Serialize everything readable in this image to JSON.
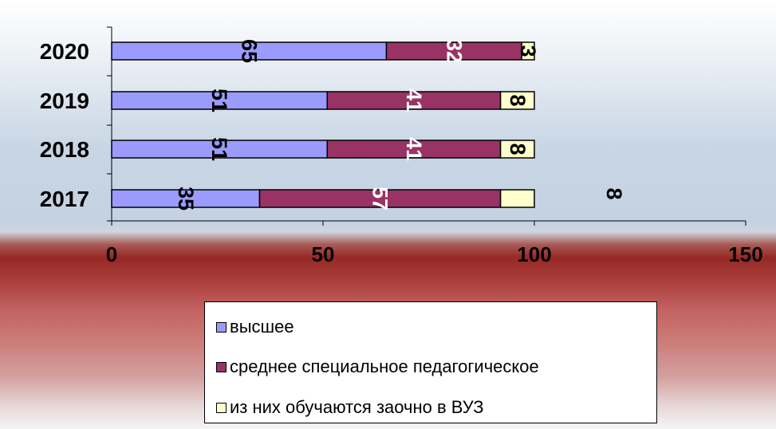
{
  "colors": {
    "higher": "#9b9bfd",
    "secondary": "#993366",
    "correspondence": "#ffffcc"
  },
  "chart_data": {
    "type": "bar",
    "orientation": "horizontal",
    "stacked": true,
    "categories": [
      "2017",
      "2018",
      "2019",
      "2020"
    ],
    "series": [
      {
        "name": "высшее",
        "values": [
          35,
          51,
          51,
          65
        ],
        "labels": [
          "35",
          "51",
          "51",
          "65"
        ]
      },
      {
        "name": "среднее специальное педагогическое",
        "values": [
          57,
          41,
          41,
          32
        ],
        "labels": [
          "57",
          "41",
          "41",
          "32"
        ]
      },
      {
        "name": "из них обучаются заочно в ВУЗ",
        "values": [
          8,
          8,
          8,
          3
        ],
        "labels": [
          "8",
          "8",
          "8",
          "3"
        ]
      }
    ],
    "xlim": [
      0,
      150
    ],
    "xticks": [
      "0",
      "50",
      "100",
      "150"
    ],
    "legend_position": "bottom",
    "grid": false
  },
  "legend": {
    "items": [
      {
        "label": "высшее"
      },
      {
        "label": "среднее специальное педагогическое"
      },
      {
        "label": "из них обучаются заочно в ВУЗ"
      }
    ]
  }
}
